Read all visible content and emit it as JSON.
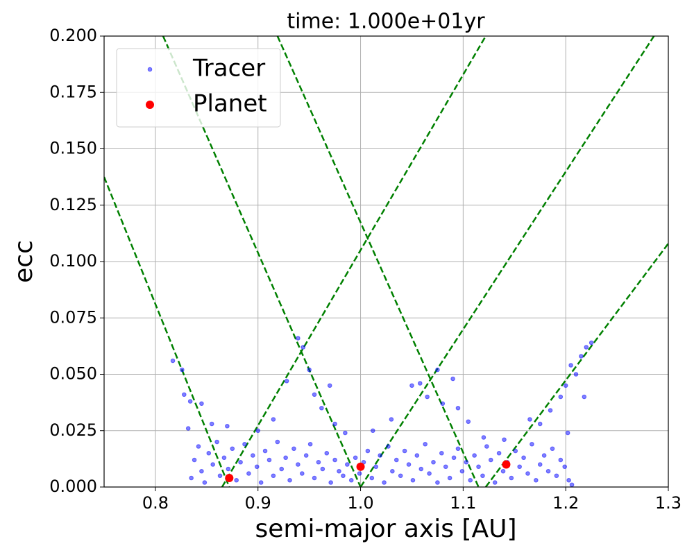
{
  "chart_data": {
    "type": "scatter",
    "title": "time: 1.000e+01yr",
    "x_label": "semi-major axis [AU]",
    "y_label": "ecc",
    "xlim": [
      0.75,
      1.3
    ],
    "ylim": [
      0,
      0.2
    ],
    "xticks": [
      0.8,
      0.9,
      {
        "value": 1,
        "label": "1.0"
      },
      1.1,
      1.2,
      1.3
    ],
    "yticks": [
      {
        "value": 0,
        "label": "0.000"
      },
      0.025,
      {
        "value": 0.05,
        "label": "0.050"
      },
      0.075,
      {
        "value": 0.1,
        "label": "0.100"
      },
      0.125,
      {
        "value": 0.15,
        "label": "0.150"
      },
      0.175,
      {
        "value": 0.2,
        "label": "0.200"
      }
    ],
    "grid": true,
    "legend": "upper left",
    "series": [
      {
        "name": "Tracer",
        "color": "#0000ff",
        "x": [
          0.835,
          0.838,
          0.842,
          0.845,
          0.848,
          0.852,
          0.856,
          0.86,
          0.863,
          0.867,
          0.871,
          0.875,
          0.879,
          0.883,
          0.887,
          0.891,
          0.895,
          0.899,
          0.903,
          0.907,
          0.911,
          0.915,
          0.919,
          0.923,
          0.927,
          0.931,
          0.935,
          0.939,
          0.943,
          0.947,
          0.951,
          0.955,
          0.959,
          0.963,
          0.967,
          0.971,
          0.975,
          0.979,
          0.983,
          0.987,
          0.991,
          0.995,
          0.999,
          1.003,
          1.007,
          1.011,
          1.015,
          1.019,
          1.023,
          1.027,
          1.031,
          1.035,
          1.039,
          1.043,
          1.047,
          1.051,
          1.055,
          1.059,
          1.063,
          1.067,
          1.071,
          1.075,
          1.079,
          1.083,
          1.087,
          1.091,
          1.095,
          1.099,
          1.103,
          1.107,
          1.111,
          1.115,
          1.119,
          1.123,
          1.127,
          1.131,
          1.135,
          1.139,
          1.143,
          1.147,
          1.151,
          1.155,
          1.159,
          1.163,
          1.167,
          1.171,
          1.175,
          1.179,
          1.183,
          1.187,
          1.191,
          1.195,
          1.199,
          1.203,
          1.206,
          0.817,
          0.826,
          0.828,
          0.834,
          0.845,
          0.855,
          0.9,
          0.915,
          0.928,
          0.939,
          0.944,
          0.95,
          0.955,
          0.962,
          0.97,
          0.975,
          0.985,
          1.03,
          1.05,
          1.058,
          1.065,
          1.075,
          1.08,
          1.09,
          1.095,
          1.105,
          1.12,
          1.14,
          1.165,
          1.175,
          1.185,
          1.195,
          1.2,
          1.205,
          1.21,
          1.215,
          1.22,
          1.225,
          1.218,
          1.202,
          0.832,
          0.87,
          1.012
        ],
        "y": [
          0.004,
          0.012,
          0.018,
          0.007,
          0.002,
          0.015,
          0.01,
          0.02,
          0.005,
          0.013,
          0.008,
          0.017,
          0.003,
          0.011,
          0.019,
          0.006,
          0.014,
          0.009,
          0.002,
          0.016,
          0.012,
          0.005,
          0.02,
          0.008,
          0.013,
          0.003,
          0.017,
          0.01,
          0.006,
          0.014,
          0.019,
          0.004,
          0.011,
          0.008,
          0.015,
          0.002,
          0.012,
          0.007,
          0.005,
          0.01,
          0.003,
          0.013,
          0.006,
          0.011,
          0.016,
          0.004,
          0.009,
          0.014,
          0.002,
          0.018,
          0.007,
          0.012,
          0.005,
          0.016,
          0.01,
          0.003,
          0.014,
          0.008,
          0.019,
          0.006,
          0.011,
          0.002,
          0.015,
          0.009,
          0.004,
          0.013,
          0.017,
          0.007,
          0.011,
          0.003,
          0.014,
          0.009,
          0.005,
          0.018,
          0.012,
          0.002,
          0.015,
          0.007,
          0.011,
          0.004,
          0.016,
          0.009,
          0.013,
          0.006,
          0.019,
          0.003,
          0.01,
          0.014,
          0.007,
          0.017,
          0.005,
          0.012,
          0.009,
          0.003,
          0.001,
          0.056,
          0.052,
          0.041,
          0.038,
          0.037,
          0.028,
          0.025,
          0.03,
          0.047,
          0.066,
          0.062,
          0.052,
          0.041,
          0.035,
          0.045,
          0.028,
          0.024,
          0.03,
          0.045,
          0.046,
          0.04,
          0.052,
          0.037,
          0.048,
          0.035,
          0.029,
          0.022,
          0.021,
          0.03,
          0.028,
          0.034,
          0.04,
          0.045,
          0.054,
          0.05,
          0.058,
          0.062,
          0.064,
          0.04,
          0.024,
          0.026,
          0.027,
          0.025
        ]
      },
      {
        "name": "Planet",
        "color": "#ff0000",
        "x": [
          0.872,
          1.0,
          1.142
        ],
        "y": [
          0.004,
          0.009,
          0.01
        ]
      }
    ],
    "lines": [
      {
        "color": "#008000",
        "dashed": true,
        "x": [
          0.75,
          0.872
        ],
        "y": [
          0.1375,
          0
        ]
      },
      {
        "color": "#008000",
        "dashed": true,
        "x": [
          0.8075,
          1.0
        ],
        "y": [
          0.2,
          0
        ]
      },
      {
        "color": "#008000",
        "dashed": true,
        "x": [
          0.919,
          1.115
        ],
        "y": [
          0.2,
          0
        ]
      },
      {
        "color": "#008000",
        "dashed": true,
        "x": [
          0.865,
          1.122
        ],
        "y": [
          0,
          0.2
        ]
      },
      {
        "color": "#008000",
        "dashed": true,
        "x": [
          1.0,
          1.286
        ],
        "y": [
          0,
          0.2
        ]
      },
      {
        "color": "#008000",
        "dashed": true,
        "x": [
          1.122,
          1.3
        ],
        "y": [
          0,
          0.108
        ]
      }
    ]
  }
}
